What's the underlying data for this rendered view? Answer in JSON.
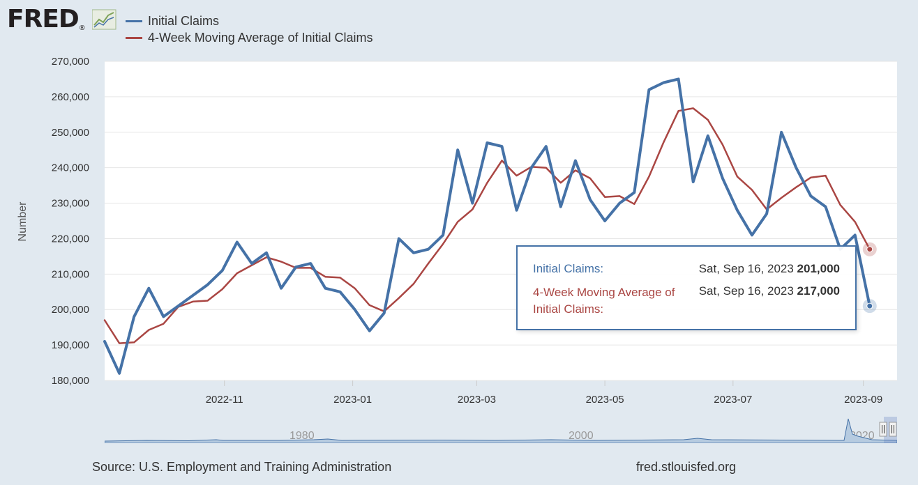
{
  "header": {
    "logo_text": "FRED",
    "logo_registered": "®"
  },
  "legend": [
    {
      "label": "Initial Claims",
      "color": "#4572a7"
    },
    {
      "label": "4-Week Moving Average of Initial Claims",
      "color": "#aa4643"
    }
  ],
  "chart_data": {
    "type": "line",
    "title": "",
    "ylabel": "Number",
    "xlabel": "",
    "ylim": [
      180000,
      270000
    ],
    "yticks": [
      180000,
      190000,
      200000,
      210000,
      220000,
      230000,
      240000,
      250000,
      260000,
      270000
    ],
    "ytick_labels": [
      "180,000",
      "190,000",
      "200,000",
      "210,000",
      "220,000",
      "230,000",
      "240,000",
      "250,000",
      "260,000",
      "270,000"
    ],
    "xticks": [
      "2022-11",
      "2023-01",
      "2023-03",
      "2023-05",
      "2023-07",
      "2023-09"
    ],
    "xtick_positions": [
      8.14,
      16.86,
      25.29,
      34.0,
      42.71,
      51.57
    ],
    "x_range": [
      0,
      53.86
    ],
    "series": [
      {
        "name": "Initial Claims",
        "color": "#4572a7",
        "values": [
          191000,
          182000,
          198000,
          206000,
          198000,
          201000,
          204000,
          207000,
          211000,
          219000,
          213000,
          216000,
          206000,
          212000,
          213000,
          206000,
          205000,
          200000,
          194000,
          199000,
          220000,
          216000,
          217000,
          221000,
          245000,
          230000,
          247000,
          246000,
          228000,
          240000,
          246000,
          229000,
          242000,
          231000,
          225000,
          230000,
          233000,
          262000,
          264000,
          265000,
          236000,
          249000,
          237000,
          228000,
          221000,
          227000,
          250000,
          240000,
          232000,
          229000,
          217000,
          221000,
          201000
        ]
      },
      {
        "name": "4-Week Moving Average of Initial Claims",
        "color": "#aa4643",
        "values": [
          197000,
          190500,
          190750,
          194250,
          196000,
          200750,
          202250,
          202500,
          205750,
          210250,
          212500,
          214750,
          213500,
          211750,
          211750,
          209250,
          209000,
          206000,
          201250,
          199500,
          203250,
          207250,
          213000,
          218500,
          224750,
          228250,
          235750,
          242000,
          237750,
          240250,
          240000,
          235750,
          239250,
          237000,
          231750,
          232000,
          229750,
          237500,
          247250,
          256000,
          256750,
          253500,
          246500,
          237500,
          233750,
          228250,
          231500,
          234500,
          237250,
          237750,
          229500,
          224750,
          217000
        ]
      }
    ]
  },
  "tooltip": {
    "series1_label": "Initial Claims:",
    "series1_date": "Sat, Sep 16, 2023",
    "series1_value": "201,000",
    "series2_label": "4-Week Moving Average of Initial Claims:",
    "series2_date": "Sat, Sep 16, 2023",
    "series2_value": "217,000"
  },
  "navigator": {
    "labels": [
      "1980",
      "2000",
      "2020"
    ],
    "selection_fraction": [
      0.985,
      1.0
    ]
  },
  "footer": {
    "source": "Source: U.S. Employment and Training Administration",
    "url": "fred.stlouisfed.org"
  }
}
